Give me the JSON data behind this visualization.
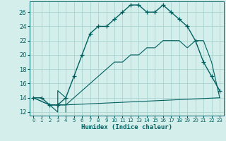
{
  "xlabel": "Humidex (Indice chaleur)",
  "bg_color": "#d4eeec",
  "grid_color": "#aad4d0",
  "line_color": "#006060",
  "xlim": [
    -0.5,
    23.5
  ],
  "ylim": [
    11.5,
    27.5
  ],
  "xticks": [
    0,
    1,
    2,
    3,
    4,
    5,
    6,
    7,
    8,
    9,
    10,
    11,
    12,
    13,
    14,
    15,
    16,
    17,
    18,
    19,
    20,
    21,
    22,
    23
  ],
  "yticks": [
    12,
    14,
    16,
    18,
    20,
    22,
    24,
    26
  ],
  "line1_x": [
    0,
    1,
    2,
    3,
    4,
    5,
    6,
    7,
    8,
    9,
    10,
    11,
    12,
    13,
    14,
    15,
    16,
    17,
    18,
    19,
    20,
    21,
    22,
    23
  ],
  "line1_y": [
    14,
    14,
    13,
    13,
    14,
    17,
    20,
    23,
    24,
    24,
    25,
    26,
    27,
    27,
    26,
    26,
    27,
    26,
    25,
    24,
    22,
    19,
    17,
    15
  ],
  "line2_x": [
    0,
    2,
    3,
    4,
    23
  ],
  "line2_y": [
    14,
    13,
    13,
    13,
    14
  ],
  "line3_x": [
    0,
    2,
    3,
    4,
    5,
    6,
    7,
    8,
    9,
    10,
    11,
    12,
    13,
    14,
    15,
    16,
    17,
    18,
    19,
    20,
    21,
    22,
    23
  ],
  "line3_y": [
    14,
    13,
    13,
    13,
    14,
    15,
    16,
    17,
    18,
    19,
    19,
    20,
    20,
    21,
    21,
    22,
    22,
    22,
    21,
    22,
    22,
    19,
    14
  ],
  "line4_x": [
    2,
    3,
    3,
    4,
    4
  ],
  "line4_y": [
    13,
    12,
    15,
    14,
    12
  ]
}
